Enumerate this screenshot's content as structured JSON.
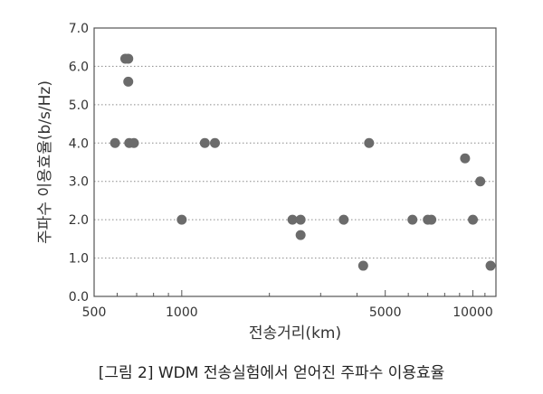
{
  "chart_data": {
    "type": "scatter",
    "xlabel": "전송거리(km)",
    "ylabel": "주파수 이용효율(b/s/Hz)",
    "x_scale": "log",
    "xlim": [
      500,
      12000
    ],
    "ylim": [
      0,
      7
    ],
    "x_ticks": [
      500,
      1000,
      5000,
      10000
    ],
    "x_tick_labels": [
      "500",
      "1000",
      "5000",
      "10000"
    ],
    "y_ticks": [
      0,
      1,
      2,
      3,
      4,
      5,
      6,
      7
    ],
    "y_tick_labels": [
      "0.0",
      "1.0",
      "2.0",
      "3.0",
      "4.0",
      "5.0",
      "6.0",
      "7.0"
    ],
    "grid": "horizontal dotted",
    "series": [
      {
        "color": "#6b6b6b",
        "points": [
          {
            "x": 590,
            "y": 4.0
          },
          {
            "x": 640,
            "y": 6.2
          },
          {
            "x": 655,
            "y": 6.2
          },
          {
            "x": 655,
            "y": 5.6
          },
          {
            "x": 660,
            "y": 4.0
          },
          {
            "x": 685,
            "y": 4.0
          },
          {
            "x": 1000,
            "y": 2.0
          },
          {
            "x": 1200,
            "y": 4.0
          },
          {
            "x": 1300,
            "y": 4.0
          },
          {
            "x": 2400,
            "y": 2.0
          },
          {
            "x": 2560,
            "y": 2.0
          },
          {
            "x": 2560,
            "y": 1.6
          },
          {
            "x": 3600,
            "y": 2.0
          },
          {
            "x": 4200,
            "y": 0.8
          },
          {
            "x": 4400,
            "y": 4.0
          },
          {
            "x": 6200,
            "y": 2.0
          },
          {
            "x": 7000,
            "y": 2.0
          },
          {
            "x": 7200,
            "y": 2.0
          },
          {
            "x": 9400,
            "y": 3.6
          },
          {
            "x": 10000,
            "y": 2.0
          },
          {
            "x": 10600,
            "y": 3.0
          },
          {
            "x": 11500,
            "y": 0.8
          }
        ]
      }
    ]
  },
  "caption": "[그림 2] WDM 전송실험에서 얻어진 주파수 이용효율"
}
